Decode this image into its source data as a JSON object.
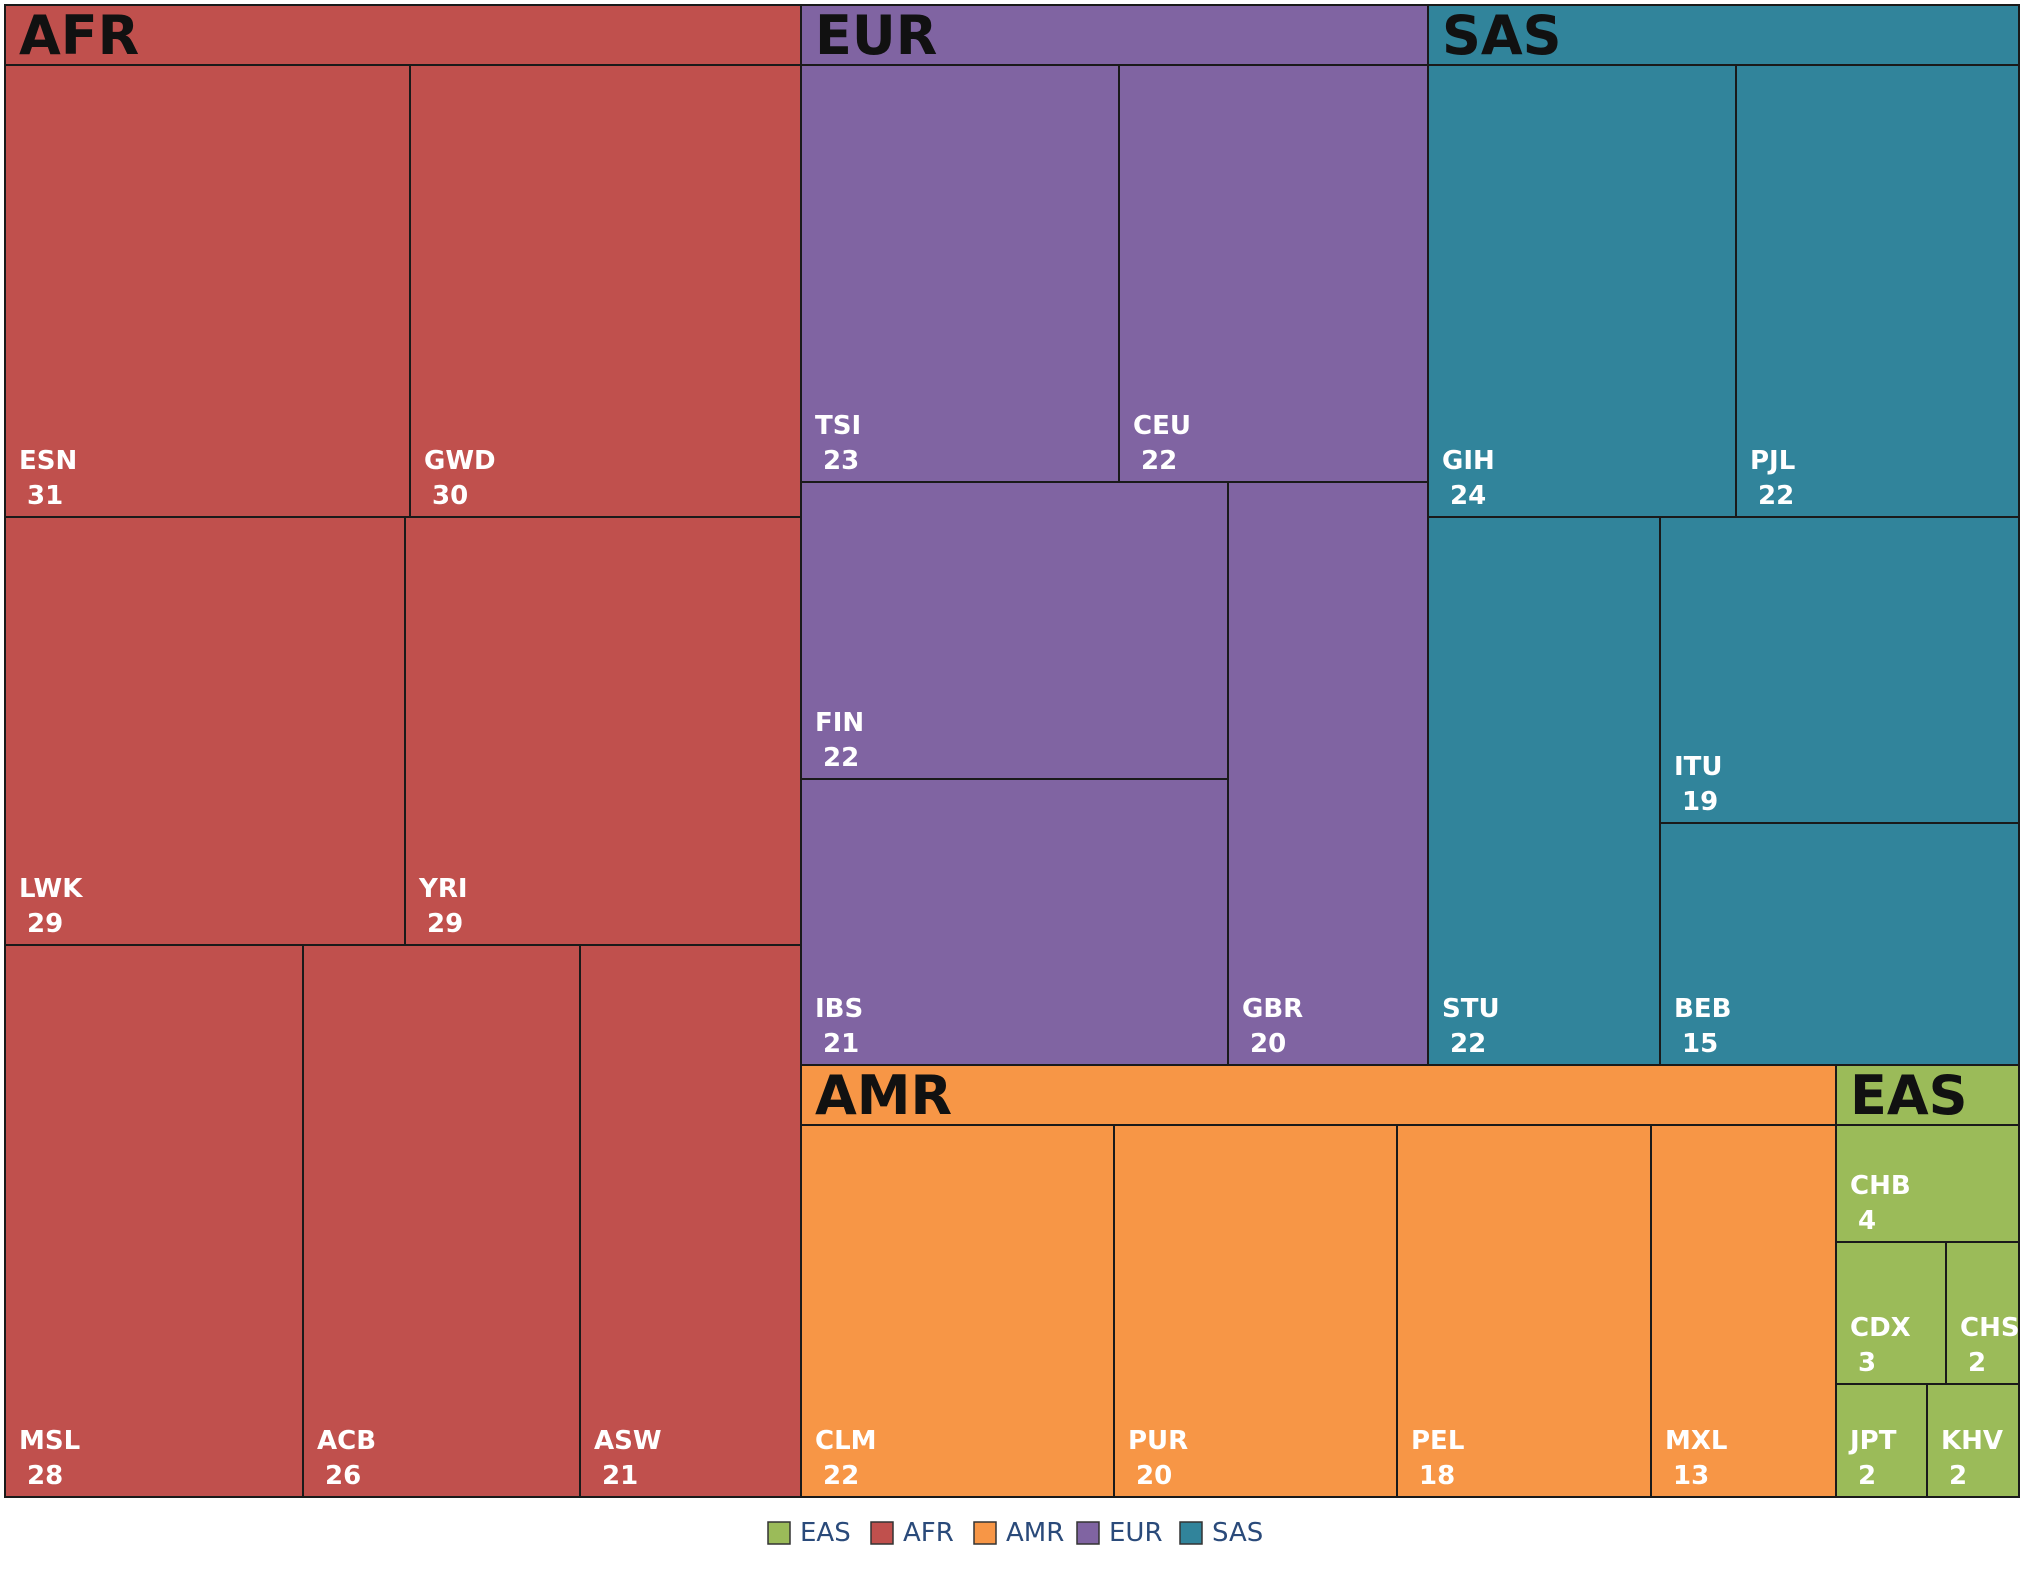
{
  "chart_data": {
    "type": "treemap",
    "title": "",
    "groups": [
      {
        "name": "AFR",
        "color": "#c0504d",
        "items": [
          {
            "name": "ESN",
            "value": 31
          },
          {
            "name": "GWD",
            "value": 30
          },
          {
            "name": "LWK",
            "value": 29
          },
          {
            "name": "YRI",
            "value": 29
          },
          {
            "name": "MSL",
            "value": 28
          },
          {
            "name": "ACB",
            "value": 26
          },
          {
            "name": "ASW",
            "value": 21
          }
        ]
      },
      {
        "name": "EUR",
        "color": "#8064a2",
        "items": [
          {
            "name": "TSI",
            "value": 23
          },
          {
            "name": "CEU",
            "value": 22
          },
          {
            "name": "FIN",
            "value": 22
          },
          {
            "name": "IBS",
            "value": 21
          },
          {
            "name": "GBR",
            "value": 20
          }
        ]
      },
      {
        "name": "SAS",
        "color": "#31849b",
        "items": [
          {
            "name": "GIH",
            "value": 24
          },
          {
            "name": "PJL",
            "value": 22
          },
          {
            "name": "ITU",
            "value": 19
          },
          {
            "name": "STU",
            "value": 22
          },
          {
            "name": "BEB",
            "value": 15
          }
        ]
      },
      {
        "name": "AMR",
        "color": "#f79646",
        "items": [
          {
            "name": "CLM",
            "value": 22
          },
          {
            "name": "PUR",
            "value": 20
          },
          {
            "name": "PEL",
            "value": 18
          },
          {
            "name": "MXL",
            "value": 13
          }
        ]
      },
      {
        "name": "EAS",
        "color": "#9bbb59",
        "items": [
          {
            "name": "CHB",
            "value": 4
          },
          {
            "name": "CDX",
            "value": 3
          },
          {
            "name": "CHS",
            "value": 2
          },
          {
            "name": "JPT",
            "value": 2
          },
          {
            "name": "KHV",
            "value": 2
          }
        ]
      }
    ],
    "legend": {
      "position": "bottom-center",
      "entries": [
        {
          "label": "EAS",
          "color": "#9bbb59"
        },
        {
          "label": "AFR",
          "color": "#c0504d"
        },
        {
          "label": "AMR",
          "color": "#f79646"
        },
        {
          "label": "EUR",
          "color": "#8064a2"
        },
        {
          "label": "SAS",
          "color": "#31849b"
        }
      ]
    }
  }
}
